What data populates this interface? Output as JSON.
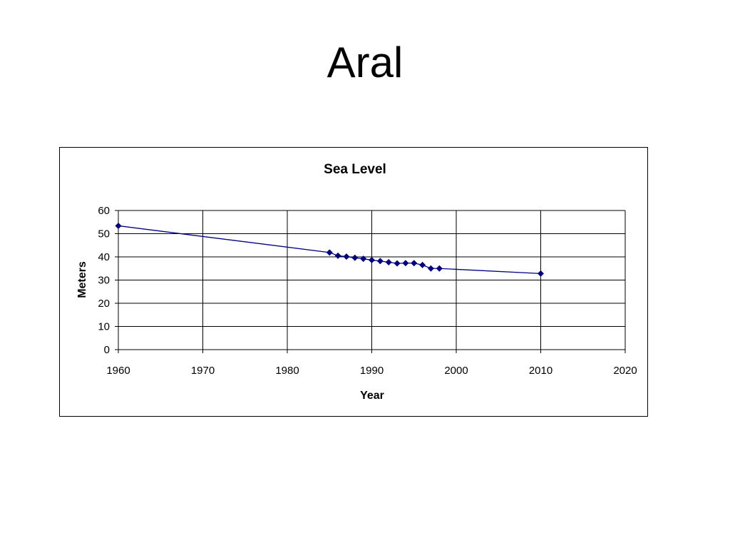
{
  "slide": {
    "title": "Aral"
  },
  "chart_data": {
    "type": "scatter",
    "title": "Sea Level",
    "xlabel": "Year",
    "ylabel": "Meters",
    "xlim": [
      1960,
      2020
    ],
    "ylim": [
      0,
      60
    ],
    "x_ticks": [
      "1960",
      "1970",
      "1980",
      "1990",
      "2000",
      "2010",
      "2020"
    ],
    "y_ticks": [
      "0",
      "10",
      "20",
      "30",
      "40",
      "50",
      "60"
    ],
    "grid": true,
    "legend": "none",
    "line_color": "#000080",
    "marker_color": "#000080",
    "marker": "diamond",
    "series": [
      {
        "points": [
          {
            "x": 1960,
            "y": 53.4
          },
          {
            "x": 1985,
            "y": 41.9
          },
          {
            "x": 1986,
            "y": 40.5
          },
          {
            "x": 1987,
            "y": 40.1
          },
          {
            "x": 1988,
            "y": 39.6
          },
          {
            "x": 1989,
            "y": 39.2
          },
          {
            "x": 1990,
            "y": 38.6
          },
          {
            "x": 1991,
            "y": 38.2
          },
          {
            "x": 1992,
            "y": 37.7
          },
          {
            "x": 1993,
            "y": 37.2
          },
          {
            "x": 1994,
            "y": 37.3
          },
          {
            "x": 1995,
            "y": 37.3
          },
          {
            "x": 1996,
            "y": 36.5
          },
          {
            "x": 1997,
            "y": 35.0
          },
          {
            "x": 1998,
            "y": 35.0
          },
          {
            "x": 2010,
            "y": 32.8
          }
        ]
      }
    ]
  }
}
